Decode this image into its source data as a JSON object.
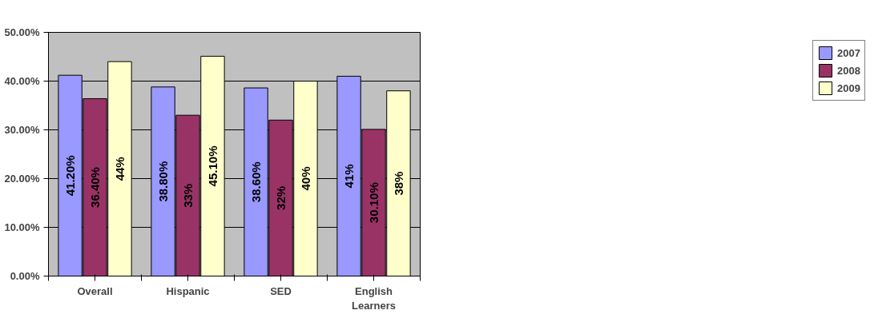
{
  "chart_data": {
    "type": "bar",
    "categories": [
      "Overall",
      "Hispanic",
      "SED",
      "English Learners"
    ],
    "series": [
      {
        "name": "2007",
        "color": "#9999ff",
        "values": [
          41.2,
          38.8,
          38.6,
          41
        ],
        "value_labels": [
          "41.20%",
          "38.80%",
          "38.60%",
          "41%"
        ]
      },
      {
        "name": "2008",
        "color": "#993366",
        "values": [
          36.4,
          33,
          32,
          30.1
        ],
        "value_labels": [
          "36.40%",
          "33%",
          "32%",
          "30.10%"
        ]
      },
      {
        "name": "2009",
        "color": "#ffffcc",
        "values": [
          44,
          45.1,
          40,
          38
        ],
        "value_labels": [
          "44%",
          "45.10%",
          "40%",
          "38%"
        ]
      }
    ],
    "ylim": [
      0,
      50
    ],
    "yticks": [
      {
        "value": 0,
        "label": "0.00%"
      },
      {
        "value": 10,
        "label": "10.00%"
      },
      {
        "value": 20,
        "label": "20.00%"
      },
      {
        "value": 30,
        "label": "30.00%"
      },
      {
        "value": 40,
        "label": "40.00%"
      },
      {
        "value": 50,
        "label": "50.00%"
      }
    ],
    "grid": "y",
    "legend": "right"
  }
}
